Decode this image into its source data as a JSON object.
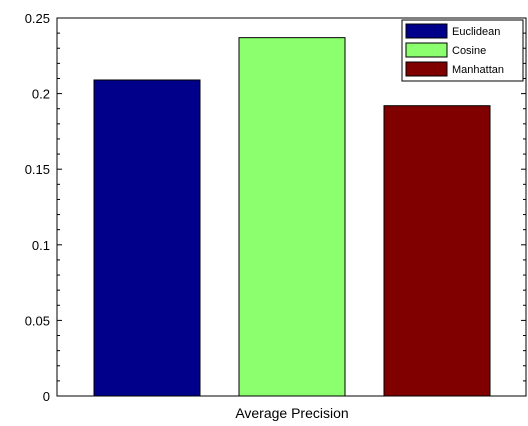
{
  "chart_data": {
    "type": "bar",
    "categories": [
      "Average Precision"
    ],
    "series": [
      {
        "name": "Euclidean",
        "values": [
          0.209
        ],
        "color": "#00008b"
      },
      {
        "name": "Cosine",
        "values": [
          0.237
        ],
        "color": "#8cff6e"
      },
      {
        "name": "Manhattan",
        "values": [
          0.192
        ],
        "color": "#800000"
      }
    ],
    "xlabel": "Average Precision",
    "ylabel": "",
    "title": "",
    "ylim": [
      0,
      0.25
    ],
    "yticks": [
      0,
      0.05,
      0.1,
      0.15,
      0.2,
      0.25
    ],
    "ytick_labels": [
      "0",
      "0.05",
      "0.1",
      "0.15",
      "0.2",
      "0.25"
    ],
    "grid": false,
    "legend": {
      "position": "top-right",
      "entries": [
        "Euclidean",
        "Cosine",
        "Manhattan"
      ]
    }
  }
}
